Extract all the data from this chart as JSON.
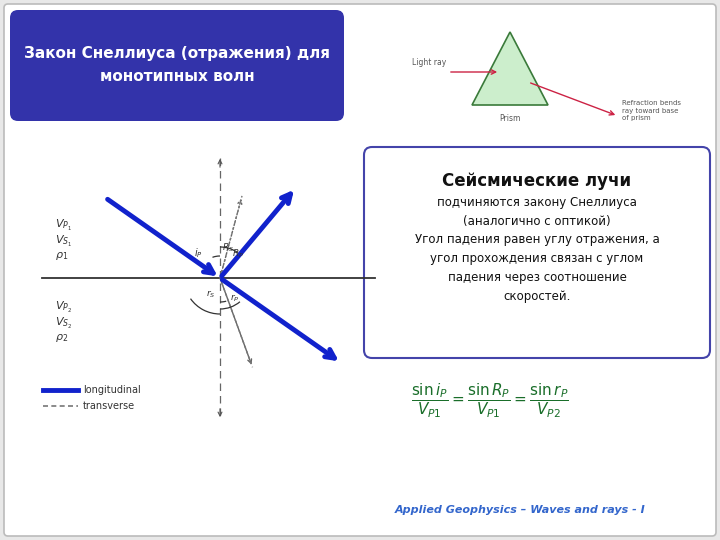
{
  "title_text": "Закон Снеллиуса (отражения) для\nмонотипных волн",
  "title_bg": "#3333aa",
  "title_fg": "#ffffff",
  "slide_bg": "#ffffff",
  "slide_border": "#bbbbbb",
  "seismic_box_title": "Сейсмические лучи",
  "seismic_box_text1": "подчиняются закону Снеллиуса\n(аналогично с оптикой)",
  "seismic_box_text2": "Угол падения равен углу отражения, а\nугол прохождения связан с углом\nпадения через соотношение\nскоростей.",
  "footer_text": "Applied Geophysics – Waves and rays - I",
  "footer_color": "#3366cc",
  "label_vp1": "$V_{P_1}$",
  "label_vs1": "$V_{S_1}$",
  "label_rho1": "$\\rho_1$",
  "label_vp2": "$V_{P_2}$",
  "label_vs2": "$V_{S_2}$",
  "label_rho2": "$\\rho_2$",
  "ray_color": "#1122cc",
  "legend_long": "#1122cc",
  "legend_trans": "#777777",
  "prism_fill": "#cceecc",
  "prism_edge": "#3a7a3a",
  "ray_pink": "#cc2244",
  "box_border": "#4444aa"
}
